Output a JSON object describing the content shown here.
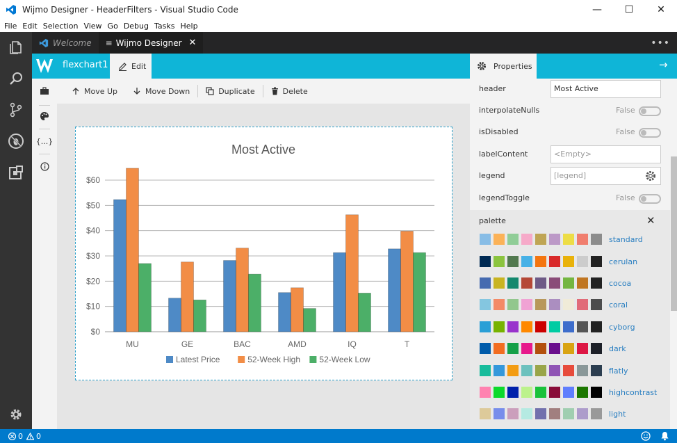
{
  "window": {
    "title": "Wijmo Designer - HeaderFilters - Visual Studio Code",
    "minimize": "—",
    "maximize": "☐",
    "close": "✕"
  },
  "menu": [
    "File",
    "Edit",
    "Selection",
    "View",
    "Go",
    "Debug",
    "Tasks",
    "Help"
  ],
  "tabs": [
    {
      "label": "Welcome"
    },
    {
      "label": "Wijmo Designer",
      "close": "✕"
    }
  ],
  "tabs_more": "•••",
  "designer": {
    "control_name": "flexchart1",
    "edit_label": "Edit"
  },
  "properties": {
    "tab_label": "Properties",
    "arrow": "→"
  },
  "toolbar": {
    "move_up": "Move Up",
    "move_down": "Move Down",
    "duplicate": "Duplicate",
    "delete": "Delete"
  },
  "tool_strip": {
    "braces": "{...}"
  },
  "prop_rows": [
    {
      "label": "header",
      "kind": "input",
      "value": "Most Active"
    },
    {
      "label": "interpolateNulls",
      "kind": "bool",
      "value": "False"
    },
    {
      "label": "isDisabled",
      "kind": "bool",
      "value": "False"
    },
    {
      "label": "labelContent",
      "kind": "input",
      "value": "<Empty>"
    },
    {
      "label": "legend",
      "kind": "input",
      "value": "[legend]"
    },
    {
      "label": "legendToggle",
      "kind": "bool",
      "value": "False"
    }
  ],
  "palette": {
    "label": "palette",
    "close": "✕",
    "rows": [
      {
        "name": "standard",
        "colors": [
          "#88bde6",
          "#fbb258",
          "#90cd97",
          "#f6aac9",
          "#bfa554",
          "#bc99c7",
          "#eddd46",
          "#f07e6e",
          "#8c8c8c"
        ]
      },
      {
        "name": "cerulan",
        "colors": [
          "#002a53",
          "#8bc43f",
          "#52794f",
          "#47b1e6",
          "#f4750f",
          "#d92a2a",
          "#e9b20a",
          "#cccccc",
          "#222222"
        ]
      },
      {
        "name": "cocoa",
        "colors": [
          "#466bb0",
          "#c8b422",
          "#14886e",
          "#b54836",
          "#6e5a86",
          "#8a4c78",
          "#74b640",
          "#c07622",
          "#222222"
        ]
      },
      {
        "name": "coral",
        "colors": [
          "#84c6e0",
          "#f48a66",
          "#92c78d",
          "#f0a2d4",
          "#b8985b",
          "#ab8ec0",
          "#f0ebd8",
          "#e16b78",
          "#4d4d4d"
        ]
      },
      {
        "name": "cyborg",
        "colors": [
          "#2a9fd6",
          "#77b300",
          "#9933cc",
          "#ff8800",
          "#cc0000",
          "#00cca3",
          "#3d6dcc",
          "#555555",
          "#222222"
        ]
      },
      {
        "name": "dark",
        "colors": [
          "#005baa",
          "#f26d21",
          "#15a048",
          "#e71a8c",
          "#b3500d",
          "#6a0f8d",
          "#d9a413",
          "#dd1744",
          "#1d2028"
        ]
      },
      {
        "name": "flatly",
        "colors": [
          "#18bc9c",
          "#3498db",
          "#f39c12",
          "#6cc1be",
          "#99a549",
          "#8f54b5",
          "#e74c3c",
          "#8a9899",
          "#2c3e50"
        ]
      },
      {
        "name": "highcontrast",
        "colors": [
          "#ff82b0",
          "#0dda2c",
          "#0021ab",
          "#bcf28c",
          "#19c23b",
          "#890d3a",
          "#607efd",
          "#1b7700",
          "#000000"
        ]
      },
      {
        "name": "light",
        "colors": [
          "#ddca9a",
          "#778deb",
          "#cb9fbc",
          "#b5eae2",
          "#7271ad",
          "#a17f7f",
          "#a0ceb0",
          "#ad9ccb",
          "#999999"
        ]
      }
    ]
  },
  "status": {
    "errors": "0",
    "warnings": "0"
  },
  "colors": {
    "accent": "#0fb5d7",
    "activity": "#333333",
    "status": "#007acc"
  },
  "chart_data": {
    "type": "bar",
    "title": "Most Active",
    "categories": [
      "MU",
      "GE",
      "BAC",
      "AMD",
      "IQ",
      "T"
    ],
    "series": [
      {
        "name": "Latest Price",
        "color": "#4e8ac6",
        "values": [
          52.3,
          13.3,
          28.2,
          15.5,
          31.3,
          32.8
        ]
      },
      {
        "name": "52-Week High",
        "color": "#f28d46",
        "values": [
          64.7,
          27.6,
          33.1,
          17.4,
          46.3,
          39.8
        ]
      },
      {
        "name": "52-Week Low",
        "color": "#4caf68",
        "values": [
          27.0,
          12.6,
          22.8,
          9.2,
          15.3,
          31.3
        ]
      }
    ],
    "yticks": [
      "$0",
      "$10",
      "$20",
      "$30",
      "$40",
      "$50",
      "$60"
    ],
    "ylim": [
      0,
      60
    ],
    "legend": "bottom",
    "grid": true
  }
}
